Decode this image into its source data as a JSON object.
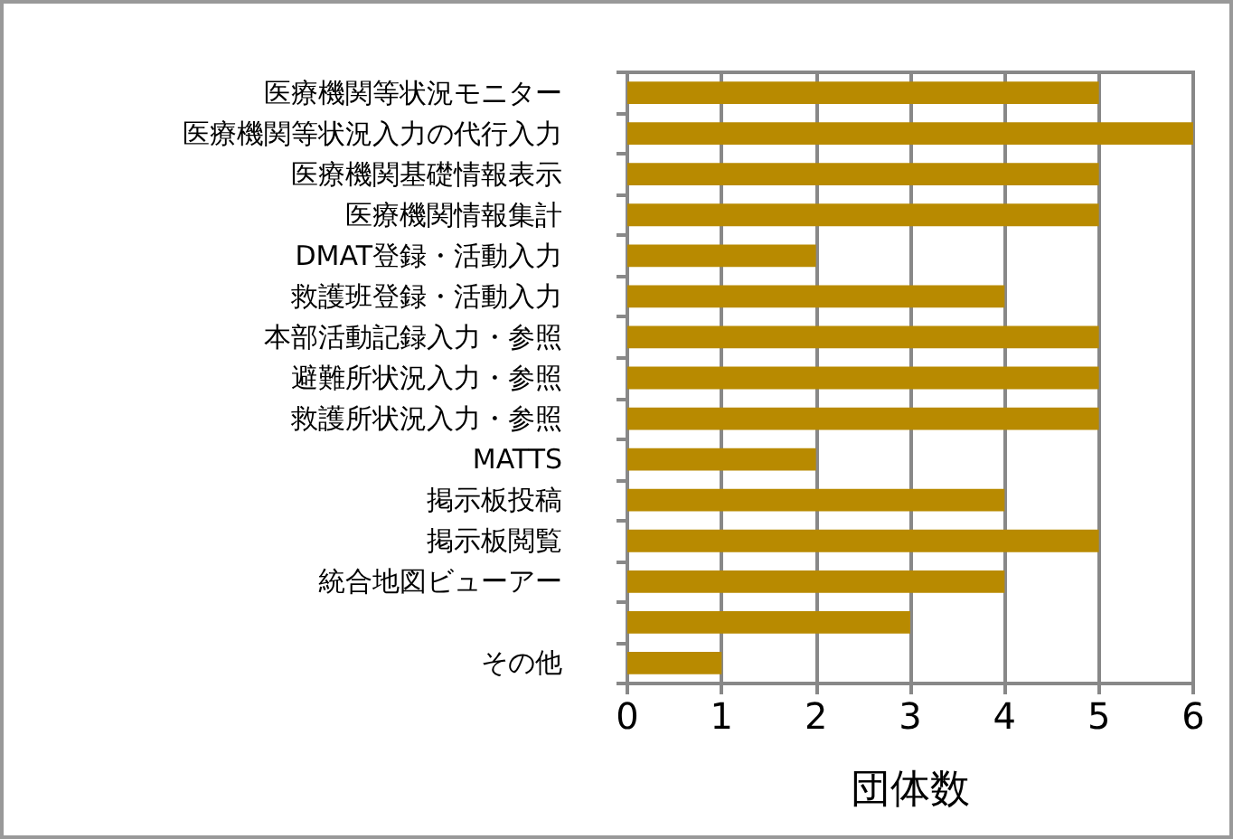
{
  "chart_data": {
    "type": "bar",
    "orientation": "horizontal",
    "xlabel": "団体数",
    "categories": [
      "医療機関等状況モニター",
      "医療機関等状況入力の代行入力",
      "医療機関基礎情報表示",
      "医療機関情報集計",
      "DMAT登録・活動入力",
      "救護班登録・活動入力",
      "本部活動記録入力・参照",
      "避難所状況入力・参照",
      "救護所状況入力・参照",
      "MATTS",
      "掲示板投稿",
      "掲示板閲覧",
      "統合地図ビューアー",
      null,
      "その他"
    ],
    "values": [
      5,
      6,
      5,
      5,
      2,
      4,
      5,
      5,
      5,
      2,
      4,
      5,
      4,
      3,
      1
    ],
    "color": "#b88a00",
    "xlim": [
      0,
      6
    ],
    "xticks": [
      0,
      1,
      2,
      3,
      4,
      5,
      6
    ],
    "grid": "x"
  }
}
